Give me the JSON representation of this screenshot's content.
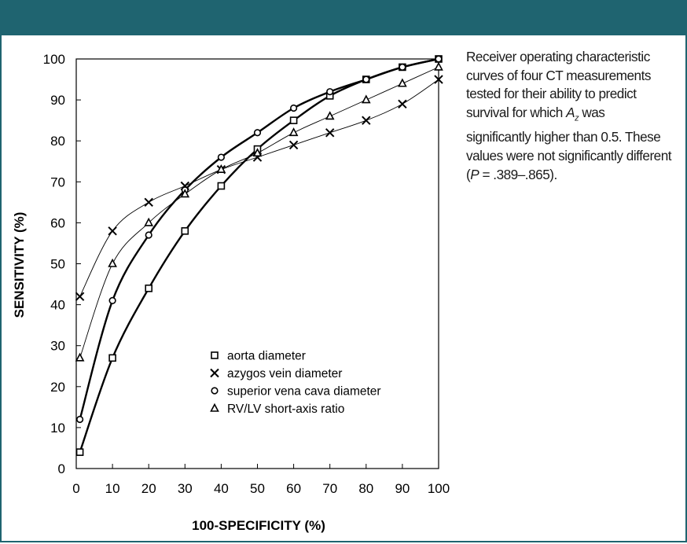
{
  "colors": {
    "header": "#1f6470",
    "ink": "#000000"
  },
  "caption": {
    "line1": "Receiver operating characteristic curves of four CT measurements tested for their ability to predict survival for which ",
    "az_main": "A",
    "az_sub": "z",
    "line2": " was significantly higher than 0.5. These values were not significantly different (",
    "p_label": "P",
    "line3": " = .389–.865)."
  },
  "chart_data": {
    "type": "line",
    "xlabel": "100-SPECIFICITY (%)",
    "ylabel": "SENSITIVITY (%)",
    "xlim": [
      0,
      100
    ],
    "ylim": [
      0,
      100
    ],
    "x_ticks": [
      "0",
      "10",
      "20",
      "30",
      "40",
      "50",
      "60",
      "70",
      "80",
      "90",
      "100"
    ],
    "y_ticks": [
      "0",
      "10",
      "20",
      "30",
      "40",
      "50",
      "60",
      "70",
      "80",
      "90",
      "100"
    ],
    "legend_position": "lower-center",
    "series": [
      {
        "name": "aorta diameter",
        "marker": "square",
        "line": "thick",
        "x": [
          1,
          10,
          20,
          30,
          40,
          50,
          60,
          70,
          80,
          90,
          100
        ],
        "y": [
          4,
          27,
          44,
          58,
          69,
          78,
          85,
          91,
          95,
          98,
          100
        ]
      },
      {
        "name": "azygos vein diameter",
        "marker": "x",
        "line": "thin",
        "x": [
          1,
          10,
          20,
          30,
          40,
          50,
          60,
          70,
          80,
          90,
          100
        ],
        "y": [
          42,
          58,
          65,
          69,
          73,
          76,
          79,
          82,
          85,
          89,
          95
        ]
      },
      {
        "name": "superior vena cava diameter",
        "marker": "circle",
        "line": "thick",
        "x": [
          1,
          10,
          20,
          30,
          40,
          50,
          60,
          70,
          80,
          90,
          100
        ],
        "y": [
          12,
          41,
          57,
          68,
          76,
          82,
          88,
          92,
          95,
          98,
          100
        ]
      },
      {
        "name": "RV/LV short-axis ratio",
        "marker": "triangle",
        "line": "thin",
        "x": [
          1,
          10,
          20,
          30,
          40,
          50,
          60,
          70,
          80,
          90,
          100
        ],
        "y": [
          27,
          50,
          60,
          67,
          73,
          77,
          82,
          86,
          90,
          94,
          98
        ]
      }
    ]
  }
}
